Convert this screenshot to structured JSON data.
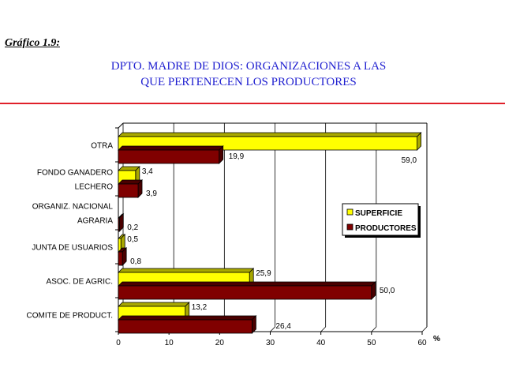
{
  "caption": "Gráfico 1.9:",
  "title_line1": "DPTO. MADRE DE DIOS: ORGANIZACIONES A LAS",
  "title_line2": "QUE PERTENECEN LOS PRODUCTORES",
  "colors": {
    "superficie": "#ffff00",
    "productores": "#800000",
    "title": "#1f1fd0",
    "rule": "#e0202a"
  },
  "chart_data": {
    "type": "bar",
    "orientation": "horizontal",
    "categories": [
      [
        "OTRA"
      ],
      [
        "FONDO GANADERO",
        "LECHERO"
      ],
      [
        "ORGANIZ. NACIONAL",
        "AGRARIA"
      ],
      [
        "JUNTA DE USUARIOS"
      ],
      [
        "ASOC. DE AGRIC."
      ],
      [
        "COMITE DE PRODUCT."
      ]
    ],
    "series": [
      {
        "name": "SUPERFICIE",
        "values": [
          59.0,
          3.4,
          null,
          0.5,
          25.9,
          13.2
        ],
        "labels": [
          "59,0",
          "3,4",
          "",
          "0,5",
          "25,9",
          "13,2"
        ]
      },
      {
        "name": "PRODUCTORES",
        "values": [
          19.9,
          3.9,
          0.2,
          0.8,
          50.0,
          26.4
        ],
        "labels": [
          "19,9",
          "3,9",
          "0,2",
          "0,8",
          "50,0",
          "26,4"
        ]
      }
    ],
    "xlim": [
      0,
      60
    ],
    "xticks": [
      "0",
      "10",
      "20",
      "30",
      "40",
      "50",
      "60"
    ],
    "xunit": "%",
    "grid": true,
    "legend_position": "right"
  }
}
